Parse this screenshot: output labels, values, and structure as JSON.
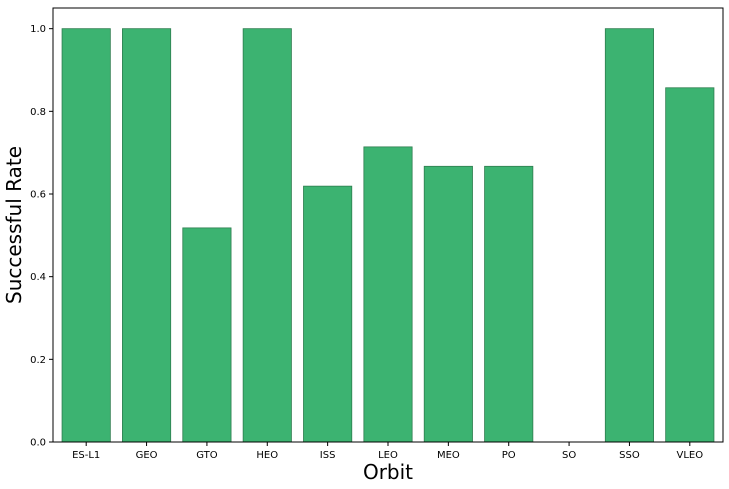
{
  "chart_data": {
    "type": "bar",
    "title": "",
    "xlabel": "Orbit",
    "ylabel": "Successful Rate",
    "categories": [
      "ES-L1",
      "GEO",
      "GTO",
      "HEO",
      "ISS",
      "LEO",
      "MEO",
      "PO",
      "SO",
      "SSO",
      "VLEO"
    ],
    "values": [
      1.0,
      1.0,
      0.518,
      1.0,
      0.619,
      0.714,
      0.667,
      0.667,
      0.0,
      1.0,
      0.857
    ],
    "ylim": [
      0,
      1.05
    ],
    "yticks": [
      "0.0",
      "0.2",
      "0.4",
      "0.6",
      "0.8",
      "1.0"
    ],
    "grid": false,
    "legend": "none",
    "colors": {
      "bar_fill": "#3cb371",
      "bar_edge": "#2e7d4f",
      "axis": "#000000"
    }
  }
}
